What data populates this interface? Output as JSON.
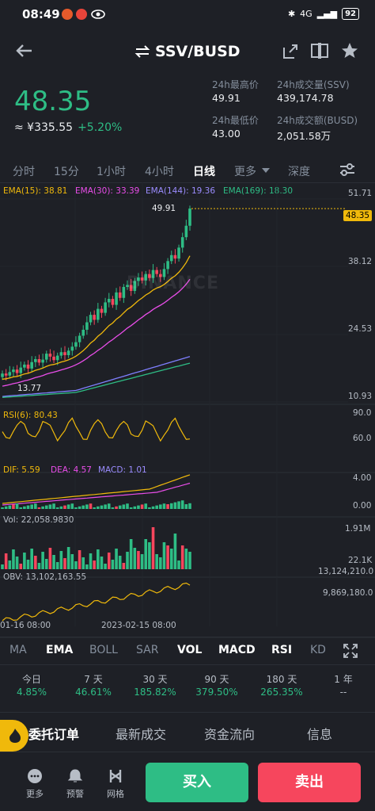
{
  "status": {
    "time": "08:49",
    "battery": "92",
    "signal": "4G"
  },
  "header": {
    "title": "SSV/BUSD"
  },
  "price": {
    "last": "48.35",
    "cny": "≈ ¥335.55",
    "change": "+5.20%"
  },
  "stats": {
    "high_label": "24h最高价",
    "high": "49.91",
    "low_label": "24h最低价",
    "low": "43.00",
    "vol_label": "24h成交量(SSV)",
    "vol": "439,174.78",
    "amt_label": "24h成交额(BUSD)",
    "amt": "2,051.58万"
  },
  "intervals": [
    "分时",
    "15分",
    "1小时",
    "4小时",
    "日线",
    "更多",
    "深度"
  ],
  "active_interval": "日线",
  "ema": {
    "e15": "EMA(15): 38.81",
    "e30": "EMA(30): 33.39",
    "e144": "EMA(144): 19.36",
    "e169": "EMA(169): 18.30"
  },
  "main_axis": [
    "51.71",
    "38.12",
    "24.53",
    "10.93"
  ],
  "price_tag": "48.35",
  "high_mark": "49.91",
  "low_mark": "13.77",
  "watermark": "BINANCE",
  "rsi": {
    "label": "RSI(6): 80.43",
    "axis_top": "90.0",
    "axis_bottom": "60.0"
  },
  "macd": {
    "dif": "DIF: 5.59",
    "dea": "DEA: 4.57",
    "macd": "MACD: 1.01",
    "axis_top": "4.00",
    "axis_bottom": "0.00"
  },
  "vol": {
    "label": "Vol: 22,058.9830",
    "axis_top": "1.91M",
    "axis_bottom": "22.1K"
  },
  "obv": {
    "label": "OBV: 13,102,163.55",
    "axis_top": "13,124,210.0",
    "axis_bottom": "9,869,180.0"
  },
  "dates": {
    "left": "01-16 08:00",
    "mid": "2023-02-15 08:00"
  },
  "indicators": [
    "MA",
    "EMA",
    "BOLL",
    "SAR",
    "VOL",
    "MACD",
    "RSI",
    "KD"
  ],
  "performance": [
    {
      "label": "今日",
      "value": "4.85%"
    },
    {
      "label": "7 天",
      "value": "46.61%"
    },
    {
      "label": "30 天",
      "value": "185.82%"
    },
    {
      "label": "90 天",
      "value": "379.50%"
    },
    {
      "label": "180 天",
      "value": "265.35%"
    },
    {
      "label": "1 年",
      "value": "--"
    }
  ],
  "bottom_tabs": [
    "委托订单",
    "最新成交",
    "资金流向",
    "信息"
  ],
  "nav": {
    "more": "更多",
    "alert": "预警",
    "grid": "网格",
    "buy": "买入",
    "sell": "卖出"
  },
  "colors": {
    "up": "#2ebd85",
    "down": "#f6465d",
    "ema15": "#f0b90b",
    "ema30": "#e94de9",
    "ema144": "#7f7fff",
    "ema169": "#2ebd85"
  }
}
